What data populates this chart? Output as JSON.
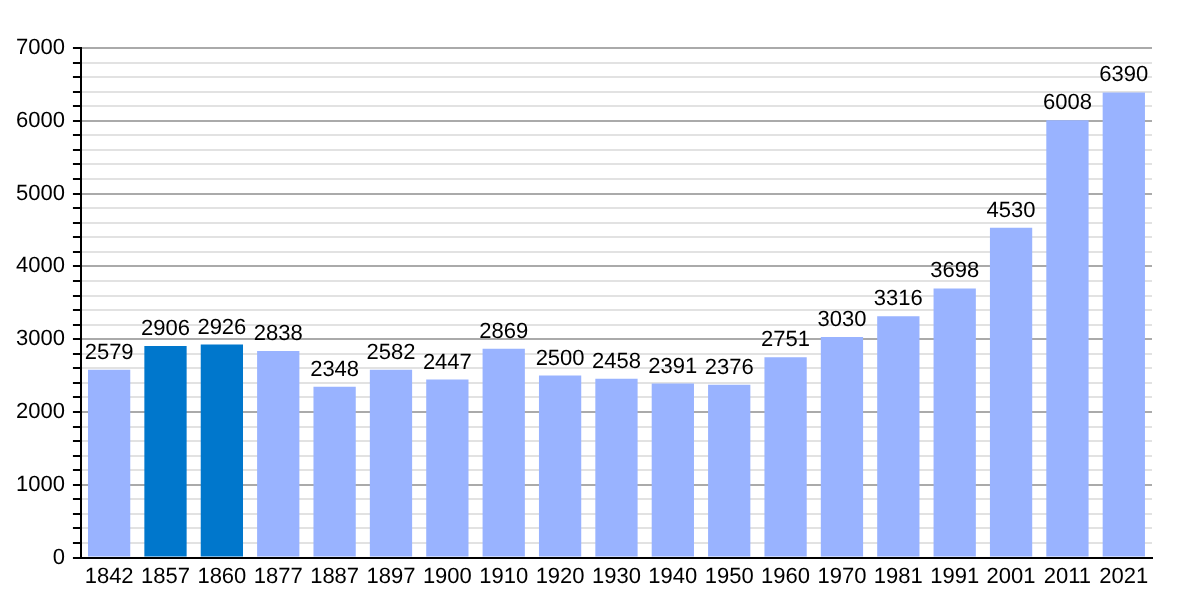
{
  "chart_data": {
    "type": "bar",
    "categories": [
      "1842",
      "1857",
      "1860",
      "1877",
      "1887",
      "1897",
      "1900",
      "1910",
      "1920",
      "1930",
      "1940",
      "1950",
      "1960",
      "1970",
      "1981",
      "1991",
      "2001",
      "2011",
      "2021"
    ],
    "values": [
      2579,
      2906,
      2926,
      2838,
      2348,
      2582,
      2447,
      2869,
      2500,
      2458,
      2391,
      2376,
      2751,
      3030,
      3316,
      3698,
      4530,
      6008,
      6390
    ],
    "colors": [
      "#99b3ff",
      "#0077cc",
      "#0077cc",
      "#99b3ff",
      "#99b3ff",
      "#99b3ff",
      "#99b3ff",
      "#99b3ff",
      "#99b3ff",
      "#99b3ff",
      "#99b3ff",
      "#99b3ff",
      "#99b3ff",
      "#99b3ff",
      "#99b3ff",
      "#99b3ff",
      "#99b3ff",
      "#99b3ff",
      "#99b3ff"
    ],
    "ylim": [
      0,
      7000
    ],
    "yticks": [
      0,
      {
        "value": 200,
        "label": null
      },
      {
        "value": 400,
        "label": null
      },
      {
        "value": 600,
        "label": null
      },
      {
        "value": 800,
        "label": null
      },
      1000,
      {
        "value": 1200,
        "label": null
      },
      {
        "value": 1400,
        "label": null
      },
      {
        "value": 1600,
        "label": null
      },
      {
        "value": 1800,
        "label": null
      },
      2000,
      {
        "value": 2200,
        "label": null
      },
      {
        "value": 2400,
        "label": null
      },
      {
        "value": 2600,
        "label": null
      },
      {
        "value": 2800,
        "label": null
      },
      3000,
      {
        "value": 3200,
        "label": null
      },
      {
        "value": 3400,
        "label": null
      },
      {
        "value": 3600,
        "label": null
      },
      {
        "value": 3800,
        "label": null
      },
      4000,
      {
        "value": 4200,
        "label": null
      },
      {
        "value": 4400,
        "label": null
      },
      {
        "value": 4600,
        "label": null
      },
      {
        "value": 4800,
        "label": null
      },
      5000,
      {
        "value": 5200,
        "label": null
      },
      {
        "value": 5400,
        "label": null
      },
      {
        "value": 5600,
        "label": null
      },
      {
        "value": 5800,
        "label": null
      },
      6000,
      {
        "value": 6200,
        "label": null
      },
      {
        "value": 6400,
        "label": null
      },
      {
        "value": 6600,
        "label": null
      },
      {
        "value": 6800,
        "label": null
      },
      7000
    ],
    "grid": "y",
    "data_labels": true,
    "legend": false
  }
}
